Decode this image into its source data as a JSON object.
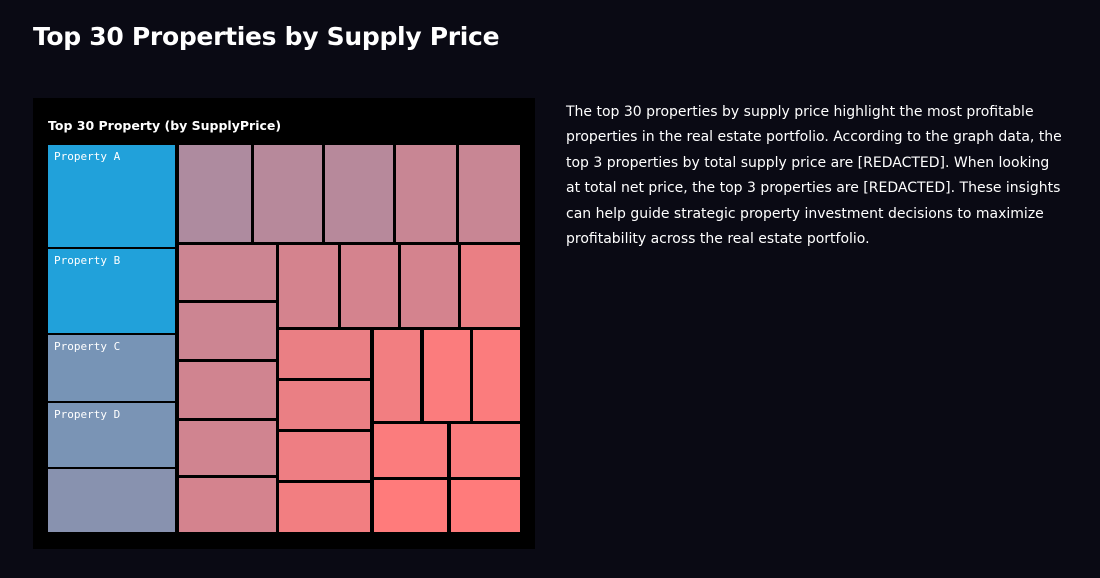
{
  "page": {
    "title": "Top 30 Properties by Supply Price",
    "description": "The top 30 properties by supply price highlight the most profitable properties in the real estate portfolio. According to the graph data, the top 3 properties by total supply price are [REDACTED]. When looking at total net price, the top 3 properties are [REDACTED]. These insights can help guide strategic property investment decisions to maximize profitability across the real estate portfolio."
  },
  "colors": {
    "background": "#0a0a14",
    "panel": "#000000",
    "scale_low": "#ff7b7b",
    "scale_mid": "#9a8fa8",
    "scale_high": "#21a1da"
  },
  "chart_data": {
    "type": "treemap",
    "title": "Top 30 Property (by SupplyPrice)",
    "items": [
      {
        "label": "Property A",
        "value": 100
      },
      {
        "label": "Property B",
        "value": 85
      },
      {
        "label": "Property C",
        "value": 55
      },
      {
        "label": "Property D",
        "value": 54
      },
      {
        "label": "",
        "value": 50
      },
      {
        "label": "",
        "value": 40
      },
      {
        "label": "",
        "value": 38
      },
      {
        "label": "",
        "value": 38
      },
      {
        "label": "",
        "value": 34
      },
      {
        "label": "",
        "value": 34
      },
      {
        "label": "",
        "value": 33
      },
      {
        "label": "",
        "value": 33
      },
      {
        "label": "",
        "value": 32
      },
      {
        "label": "",
        "value": 32
      },
      {
        "label": "",
        "value": 31
      },
      {
        "label": "",
        "value": 31
      },
      {
        "label": "",
        "value": 31
      },
      {
        "label": "",
        "value": 31
      },
      {
        "label": "",
        "value": 26
      },
      {
        "label": "",
        "value": 26
      },
      {
        "label": "",
        "value": 26
      },
      {
        "label": "",
        "value": 25
      },
      {
        "label": "",
        "value": 24
      },
      {
        "label": "",
        "value": 24
      },
      {
        "label": "",
        "value": 22
      },
      {
        "label": "",
        "value": 22
      },
      {
        "label": "",
        "value": 22
      },
      {
        "label": "",
        "value": 22
      },
      {
        "label": "",
        "value": 21
      },
      {
        "label": "",
        "value": 21
      }
    ]
  }
}
